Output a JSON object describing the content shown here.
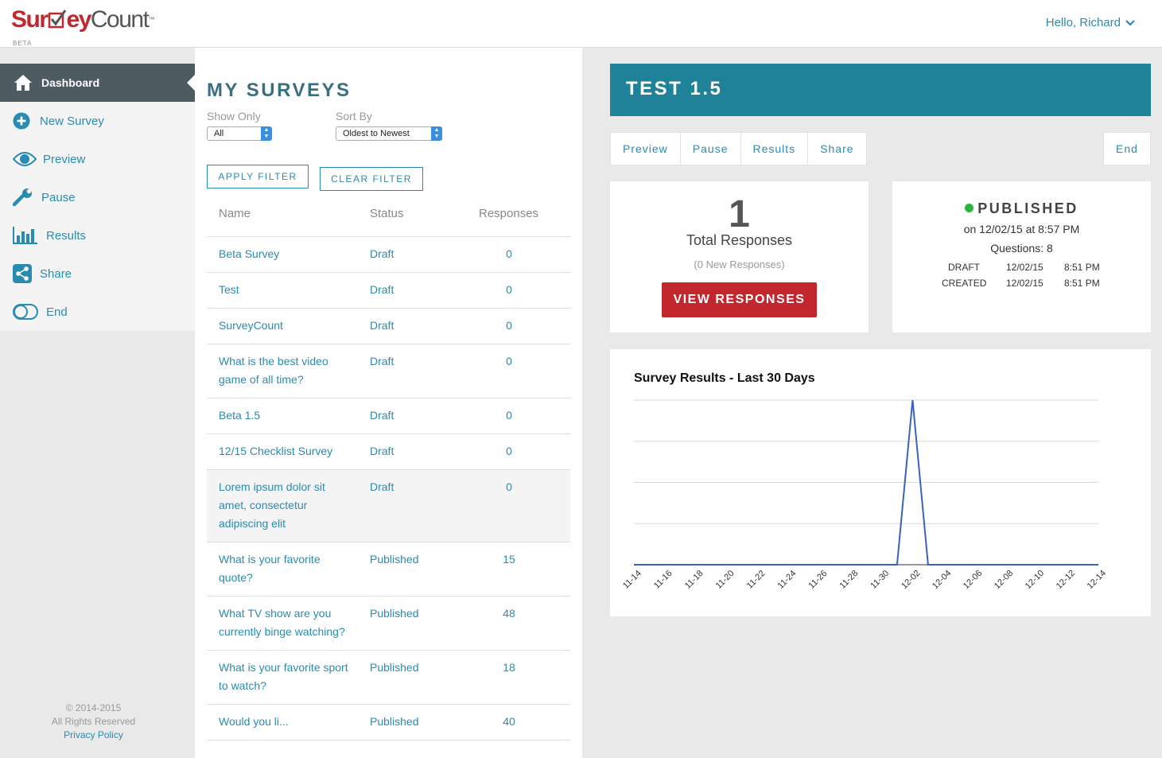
{
  "header": {
    "logo_part1": "Sur",
    "logo_part2": "ey",
    "logo_part3": "Count",
    "logo_tm": "™",
    "logo_beta": "BETA",
    "greeting": "Hello, Richard",
    "brand_color": "#c1272d"
  },
  "sidebar": {
    "items": [
      {
        "label": "Dashboard",
        "icon": "home-icon"
      },
      {
        "label": "New Survey",
        "icon": "plus-circle-icon"
      },
      {
        "label": "Preview",
        "icon": "eye-icon"
      },
      {
        "label": "Pause",
        "icon": "wrench-icon"
      },
      {
        "label": "Results",
        "icon": "bar-chart-icon"
      },
      {
        "label": "Share",
        "icon": "share-icon"
      },
      {
        "label": "End",
        "icon": "toggle-icon"
      }
    ],
    "copyright": "© 2014-2015",
    "rights": "All Rights Reserved",
    "privacy": "Privacy Policy"
  },
  "surveys": {
    "title": "MY SURVEYS",
    "show_only_label": "Show Only",
    "show_only_value": "All",
    "sort_by_label": "Sort By",
    "sort_by_value": "Oldest to Newest",
    "apply_filter": "APPLY FILTER",
    "clear_filter": "CLEAR FILTER",
    "columns": {
      "name": "Name",
      "status": "Status",
      "responses": "Responses"
    },
    "rows": [
      {
        "name": "Beta Survey",
        "status": "Draft",
        "responses": "0"
      },
      {
        "name": "Test",
        "status": "Draft",
        "responses": "0"
      },
      {
        "name": "SurveyCount",
        "status": "Draft",
        "responses": "0"
      },
      {
        "name": "What is the best video game of all time?",
        "status": "Draft",
        "responses": "0"
      },
      {
        "name": "Beta 1.5",
        "status": "Draft",
        "responses": "0"
      },
      {
        "name": "12/15 Checklist Survey",
        "status": "Draft",
        "responses": "0"
      },
      {
        "name": "Lorem ipsum dolor sit amet, consectetur adipiscing elit",
        "status": "Draft",
        "responses": "0"
      },
      {
        "name": "What is your favorite quote?",
        "status": "Published",
        "responses": "15"
      },
      {
        "name": "What TV show are you currently binge watching?",
        "status": "Published",
        "responses": "48"
      },
      {
        "name": "What is your favorite sport to watch?",
        "status": "Published",
        "responses": "18"
      },
      {
        "name": "Would you li...",
        "status": "Published",
        "responses": "40"
      }
    ]
  },
  "detail": {
    "title": "TEST 1.5",
    "tabs": [
      "Preview",
      "Pause",
      "Results",
      "Share"
    ],
    "end_tab": "End",
    "total_count": "1",
    "total_label": "Total Responses",
    "new_label": "(0 New Responses)",
    "view_button": "VIEW RESPONSES",
    "status": "PUBLISHED",
    "published_on": "on 12/02/15 at 8:57 PM",
    "questions": "Questions: 8",
    "meta": [
      {
        "label": "DRAFT",
        "date": "12/02/15",
        "time": "8:51 PM"
      },
      {
        "label": "CREATED",
        "date": "12/02/15",
        "time": "8:51 PM"
      }
    ],
    "status_color": "#29b43c",
    "accent_color": "#1f8299"
  },
  "chart_data": {
    "type": "line",
    "title": "Survey Results - Last 30 Days",
    "x": [
      "11-14",
      "11-15",
      "11-16",
      "11-17",
      "11-18",
      "11-19",
      "11-20",
      "11-21",
      "11-22",
      "11-23",
      "11-24",
      "11-25",
      "11-26",
      "11-27",
      "11-28",
      "11-29",
      "11-30",
      "12-01",
      "12-02",
      "12-03",
      "12-04",
      "12-05",
      "12-06",
      "12-07",
      "12-08",
      "12-09",
      "12-10",
      "12-11",
      "12-12",
      "12-13",
      "12-14"
    ],
    "tick_labels": [
      "11-14",
      "11-16",
      "11-18",
      "11-20",
      "11-22",
      "11-24",
      "11-26",
      "11-28",
      "11-30",
      "12-02",
      "12-04",
      "12-06",
      "12-08",
      "12-10",
      "12-12",
      "12-14"
    ],
    "series": [
      {
        "values": [
          0,
          0,
          0,
          0,
          0,
          0,
          0,
          0,
          0,
          0,
          0,
          0,
          0,
          0,
          0,
          0,
          0,
          0,
          1,
          0,
          0,
          0,
          0,
          0,
          0,
          0,
          0,
          0,
          0,
          0,
          0
        ],
        "color": "#3a62b8"
      }
    ],
    "ylim": [
      0,
      1
    ],
    "grid": true,
    "xlabel": "",
    "ylabel": ""
  }
}
